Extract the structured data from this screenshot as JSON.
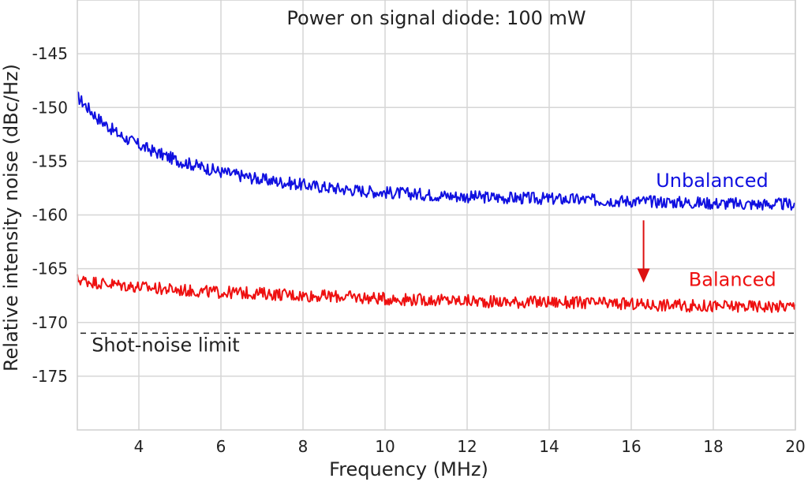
{
  "chart_data": {
    "type": "line",
    "title": "Power on signal diode: 100 mW",
    "xlabel": "Frequency (MHz)",
    "ylabel": "Relative intensity noise (dBc/Hz)",
    "xlim": [
      2.5,
      20
    ],
    "ylim": [
      -180,
      -140
    ],
    "x_ticks": [
      4,
      6,
      8,
      10,
      12,
      14,
      16,
      18,
      20
    ],
    "y_ticks": [
      -145,
      -150,
      -155,
      -160,
      -165,
      -170,
      -175
    ],
    "grid": true,
    "series": [
      {
        "name": "Unbalanced",
        "color": "#1010e0",
        "x": [
          2.5,
          3.0,
          3.5,
          4.0,
          4.5,
          5.0,
          6.0,
          7.0,
          8.0,
          9.0,
          10.0,
          11.0,
          12.0,
          13.0,
          14.0,
          15.0,
          16.0,
          17.0,
          18.0,
          19.0,
          20.0
        ],
        "values": [
          -149,
          -151,
          -152.5,
          -153.5,
          -154.3,
          -155,
          -156,
          -156.7,
          -157.2,
          -157.6,
          -157.9,
          -158.1,
          -158.3,
          -158.4,
          -158.5,
          -158.6,
          -158.7,
          -158.8,
          -158.9,
          -159.0,
          -159.0
        ]
      },
      {
        "name": "Balanced",
        "color": "#ee1010",
        "x": [
          2.5,
          3.0,
          4.0,
          5.0,
          6.0,
          7.0,
          8.0,
          9.0,
          10.0,
          11.0,
          12.0,
          13.0,
          14.0,
          15.0,
          16.0,
          17.0,
          18.0,
          19.0,
          20.0
        ],
        "values": [
          -166,
          -166.3,
          -166.7,
          -167,
          -167.2,
          -167.3,
          -167.5,
          -167.6,
          -167.8,
          -167.9,
          -168.0,
          -168.1,
          -168.1,
          -168.2,
          -168.3,
          -168.4,
          -168.5,
          -168.5,
          -168.5
        ]
      }
    ],
    "reference_line": {
      "label": "Shot-noise limit",
      "y": -171,
      "color": "#222222"
    },
    "annotations": [
      {
        "text": "Unbalanced",
        "color": "#1010e0",
        "x": 16.6,
        "y": -157.4
      },
      {
        "text": "Balanced",
        "color": "#ee1010",
        "x": 17.4,
        "y": -166.6
      },
      {
        "text": "Shot-noise limit",
        "color": "#222222",
        "x": 2.85,
        "y": -172.7
      }
    ],
    "arrow": {
      "from": [
        16.3,
        -160.5
      ],
      "to": [
        16.3,
        -166.3
      ],
      "color": "#dd1010"
    }
  }
}
